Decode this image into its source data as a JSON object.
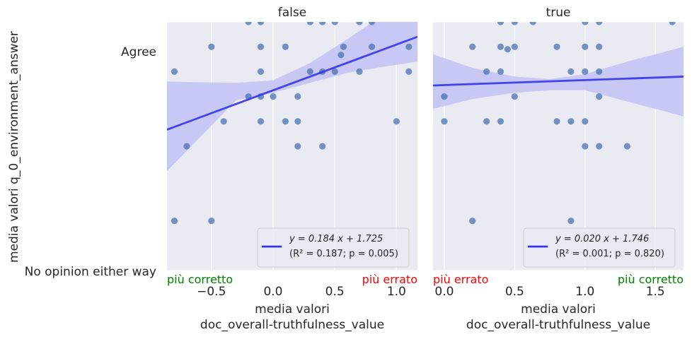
{
  "figure": {
    "ylabel": "media valori q_0_environment_answer",
    "y_tick_labels": [
      "Agree",
      "No opinion either way"
    ]
  },
  "chart_data": [
    {
      "type": "scatter",
      "title": "false",
      "xlabel_line1": "media valori",
      "xlabel_line2": "doc_overall-truthfulness_value",
      "xlim": [
        -0.86,
        1.17
      ],
      "ylim": [
        1.0,
        2.0
      ],
      "x_ticks": [
        -0.5,
        0.0,
        0.5,
        1.0
      ],
      "x_tick_labels": [
        "−0.5",
        "0.0",
        "0.5",
        "1.0"
      ],
      "corner_left": {
        "text": "più corretto",
        "color": "#008000"
      },
      "corner_right": {
        "text": "più errato",
        "color": "#ff0000"
      },
      "points": [
        [
          -0.8,
          1.8
        ],
        [
          -0.7,
          1.5
        ],
        [
          -0.8,
          1.2
        ],
        [
          -0.5,
          1.2
        ],
        [
          -0.5,
          1.9
        ],
        [
          -0.4,
          1.6
        ],
        [
          -0.2,
          1.7
        ],
        [
          -0.2,
          2.0
        ],
        [
          -0.1,
          2.0
        ],
        [
          -0.1,
          1.9
        ],
        [
          -0.1,
          1.8
        ],
        [
          -0.1,
          1.7
        ],
        [
          -0.1,
          1.6
        ],
        [
          0.0,
          1.7
        ],
        [
          0.1,
          1.9
        ],
        [
          0.1,
          1.6
        ],
        [
          0.2,
          1.7
        ],
        [
          0.2,
          1.6
        ],
        [
          0.2,
          1.5
        ],
        [
          0.3,
          2.0
        ],
        [
          0.3,
          1.8
        ],
        [
          0.4,
          2.0
        ],
        [
          0.4,
          1.8
        ],
        [
          0.4,
          1.5
        ],
        [
          0.5,
          2.0
        ],
        [
          0.5,
          1.8
        ],
        [
          0.55,
          1.867
        ],
        [
          0.57,
          1.9
        ],
        [
          0.7,
          2.0
        ],
        [
          0.7,
          1.8
        ],
        [
          0.8,
          2.0
        ],
        [
          0.8,
          1.9
        ],
        [
          1.0,
          1.6
        ],
        [
          1.1,
          1.9
        ],
        [
          1.1,
          1.8
        ]
      ],
      "fit": {
        "slope": 0.184,
        "intercept": 1.725
      },
      "band": [
        [
          -0.86,
          1.4,
          1.76
        ],
        [
          -0.3,
          1.685,
          1.755
        ],
        [
          0.0,
          1.715,
          1.765
        ],
        [
          0.3,
          1.755,
          1.835
        ],
        [
          0.6,
          1.795,
          1.93
        ],
        [
          0.9,
          1.82,
          2.03
        ],
        [
          1.17,
          1.84,
          2.1
        ]
      ],
      "legend": {
        "position": "lower right",
        "line1": "y = 0.184 x + 1.725",
        "line2": "(R² = 0.187; p = 0.005)"
      }
    },
    {
      "type": "scatter",
      "title": "true",
      "xlabel_line1": "media valori",
      "xlabel_line2": "doc_overall-truthfulness_value",
      "xlim": [
        -0.08,
        1.7
      ],
      "ylim": [
        1.0,
        2.0
      ],
      "x_ticks": [
        0.0,
        0.5,
        1.0,
        1.5
      ],
      "x_tick_labels": [
        "0.0",
        "0.5",
        "1.0",
        "1.5"
      ],
      "corner_left": {
        "text": "più errato",
        "color": "#ff0000"
      },
      "corner_right": {
        "text": "più corretto",
        "color": "#008000"
      },
      "points": [
        [
          0.0,
          1.7
        ],
        [
          0.0,
          1.6
        ],
        [
          0.2,
          1.9
        ],
        [
          0.2,
          1.2
        ],
        [
          0.3,
          1.8
        ],
        [
          0.3,
          1.6
        ],
        [
          0.4,
          2.0
        ],
        [
          0.4,
          1.9
        ],
        [
          0.4,
          1.8
        ],
        [
          0.4,
          1.6
        ],
        [
          0.45,
          1.89
        ],
        [
          0.5,
          2.0
        ],
        [
          0.5,
          1.9
        ],
        [
          0.5,
          1.7
        ],
        [
          0.63,
          2.0
        ],
        [
          0.8,
          1.9
        ],
        [
          0.8,
          1.6
        ],
        [
          0.9,
          1.8
        ],
        [
          0.9,
          1.6
        ],
        [
          0.9,
          1.2
        ],
        [
          1.0,
          2.0
        ],
        [
          1.0,
          1.9
        ],
        [
          1.0,
          1.8
        ],
        [
          1.0,
          1.6
        ],
        [
          1.0,
          1.5
        ],
        [
          1.1,
          2.0
        ],
        [
          1.1,
          1.9
        ],
        [
          1.1,
          1.8
        ],
        [
          1.1,
          1.7
        ],
        [
          1.1,
          1.5
        ],
        [
          1.3,
          1.5
        ],
        [
          1.62,
          2.0
        ]
      ],
      "fit": {
        "slope": 0.02,
        "intercept": 1.746
      },
      "band": [
        [
          -0.08,
          1.65,
          1.87
        ],
        [
          0.2,
          1.69,
          1.815
        ],
        [
          0.5,
          1.715,
          1.78
        ],
        [
          0.75,
          1.725,
          1.77
        ],
        [
          1.0,
          1.725,
          1.79
        ],
        [
          1.3,
          1.68,
          1.84
        ],
        [
          1.7,
          1.62,
          1.9
        ]
      ],
      "legend": {
        "position": "lower right",
        "line1": "y = 0.020 x + 1.746",
        "line2": "(R² = 0.001; p = 0.820)"
      }
    }
  ],
  "style": {
    "plot_bg": "#eaeaf2",
    "grid": "#ffffff",
    "point_color": "#4c72b0",
    "fit_color": "#3333ee",
    "band_color": "#c6c6f4",
    "text": "#262626"
  }
}
